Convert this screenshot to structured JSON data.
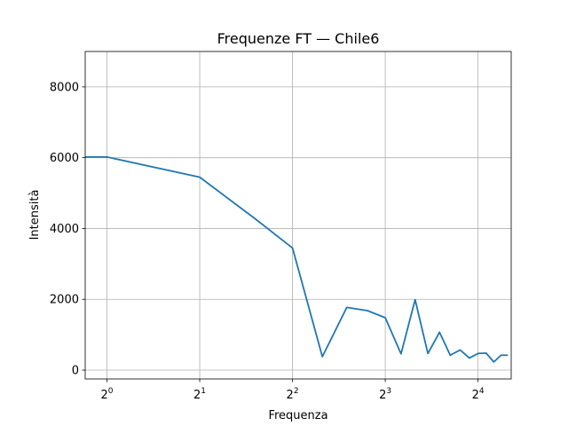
{
  "chart_data": {
    "type": "line",
    "title": "Frequenze FT — Chile6",
    "xlabel": "Frequenza",
    "ylabel": "Intensità",
    "xscale": "log2",
    "xlim": [
      0.85,
      20.5
    ],
    "ylim": [
      -250,
      9000
    ],
    "grid": true,
    "line_color": "#1f77b4",
    "x_ticks": [
      {
        "base": "2",
        "exp": "0",
        "value": 1
      },
      {
        "base": "2",
        "exp": "1",
        "value": 2
      },
      {
        "base": "2",
        "exp": "2",
        "value": 4
      },
      {
        "base": "2",
        "exp": "3",
        "value": 8
      },
      {
        "base": "2",
        "exp": "4",
        "value": 16
      }
    ],
    "y_ticks": [
      {
        "label": "0",
        "value": 0
      },
      {
        "label": "2000",
        "value": 2000
      },
      {
        "label": "4000",
        "value": 4000
      },
      {
        "label": "6000",
        "value": 6000
      },
      {
        "label": "8000",
        "value": 8000
      }
    ],
    "series": [
      {
        "x": [
          0.85,
          1,
          2,
          3,
          4,
          5,
          6,
          7,
          8,
          9,
          10,
          11,
          12,
          13,
          14,
          15,
          16,
          17,
          18,
          19,
          20
        ],
        "y": [
          6020,
          6020,
          5450,
          4300,
          3450,
          380,
          1770,
          1680,
          1480,
          460,
          1990,
          470,
          1070,
          420,
          570,
          340,
          470,
          480,
          230,
          420,
          420
        ]
      }
    ]
  }
}
